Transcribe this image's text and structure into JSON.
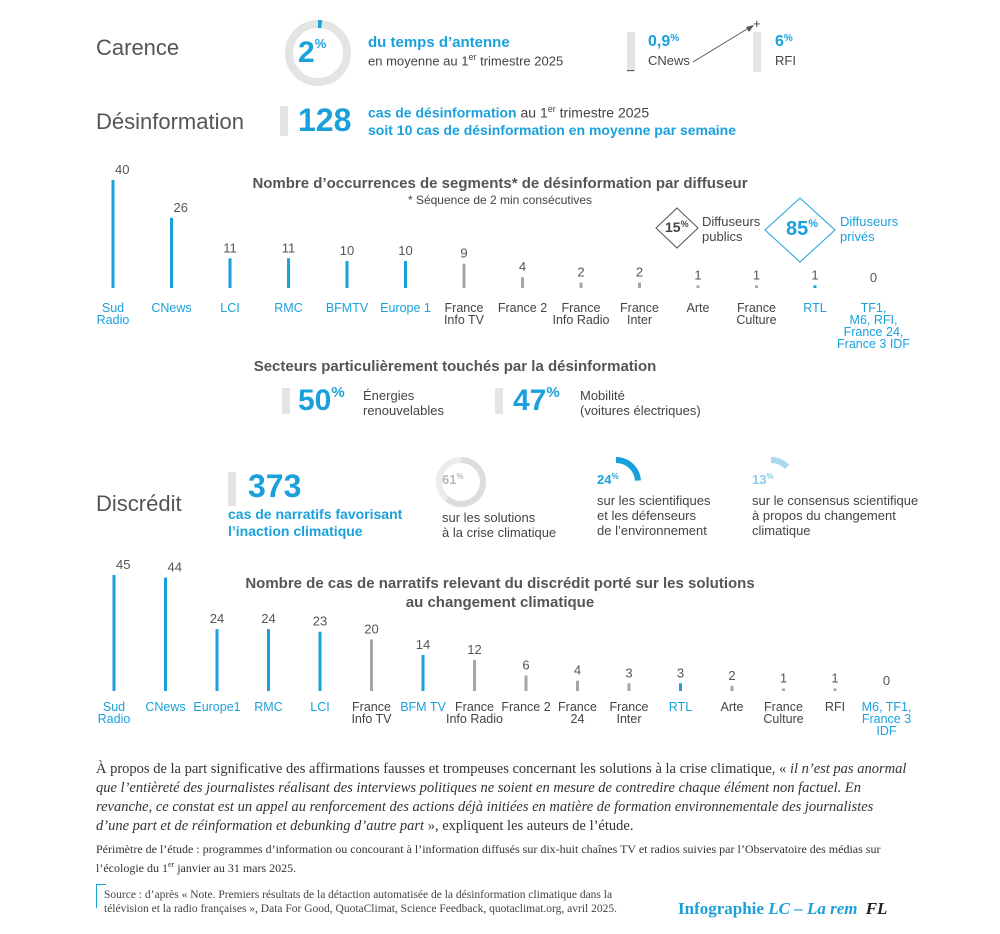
{
  "carence": {
    "title": "Carence",
    "ring_value": "2",
    "ring_unit": "%",
    "ring_fraction": 0.02,
    "line1": "du temps d’antenne",
    "line2_a": "en moyenne au 1",
    "line2_sup": "er",
    "line2_b": " trimestre 2025",
    "min_value": "0,9",
    "min_unit": "%",
    "min_label": "CNews",
    "max_value": "6",
    "max_unit": "%",
    "max_label": "RFI",
    "plus": "+",
    "minus": "–"
  },
  "desinfo": {
    "title": "Désinformation",
    "number": "128",
    "line1_blue": "cas de désinformation",
    "line1_rest_a": " au 1",
    "line1_sup": "er",
    "line1_rest_b": " trimestre 2025",
    "line2": "soit 10 cas de désinformation en moyenne par semaine"
  },
  "chart1_title": "Nombre d’occurrences de segments* de désinformation par diffuseur",
  "chart1_subtitle": "* Séquence de 2 min consécutives",
  "public_share": {
    "value": "15",
    "unit": "%",
    "label1": "Diffuseurs",
    "label2": "publics"
  },
  "private_share": {
    "value": "85",
    "unit": "%",
    "label1": "Diffuseurs",
    "label2": "privés"
  },
  "secteurs": {
    "title": "Secteurs particulièrement touchés par la désinformation",
    "s1_value": "50",
    "s1_unit": "%",
    "s1_label1": "Énergies",
    "s1_label2": "renouvelables",
    "s2_value": "47",
    "s2_unit": "%",
    "s2_label1": "Mobilité",
    "s2_label2": "(voitures électriques)"
  },
  "discredit": {
    "title": "Discrédit",
    "number": "373",
    "number_label1": "cas de narratifs favorisant",
    "number_label2": "l’inaction climatique",
    "d1_value": "61",
    "d1_unit": "%",
    "d1_fraction": 0.61,
    "d1_label1": "sur les solutions",
    "d1_label2": "à la crise climatique",
    "d2_value": "24",
    "d2_unit": "%",
    "d2_fraction": 0.24,
    "d2_label1": "sur les scientifiques",
    "d2_label2": "et les défenseurs",
    "d2_label3": "de l’environnement",
    "d3_value": "13",
    "d3_unit": "%",
    "d3_fraction": 0.13,
    "d3_label1": "sur le consensus scientifique",
    "d3_label2": "à propos du changement",
    "d3_label3": "climatique"
  },
  "chart2_title1": "Nombre de cas de narratifs relevant du discrédit porté sur les solutions",
  "chart2_title2": "au changement climatique",
  "footer": {
    "quote_a": "À propos de la part significative des affirmations fausses et trompeuses concernant les solutions à la crise climatique, « ",
    "quote_italic": "il n’est pas anormal que l’entièreté des journalistes réalisant des interviews politiques ne soient en mesure de contredire chaque élément non factuel. En revanche, ce constat est un appel au renforcement des actions déjà initiées en matière de formation environnementale des journalistes d’une part et de réinformation et debunking d’autre part",
    "quote_b": " », expliquent les auteurs de l’étude.",
    "perimetre_a": "Périmètre de l’étude : programmes d’information ou concourant à l’information diffusés sur dix-huit chaînes TV et radios suivies par l’Observatoire des médias sur l’écologie du 1",
    "perimetre_sup": "er",
    "perimetre_b": " janvier au 31 mars 2025.",
    "source1": "Source : d’après « Note. Premiers résultats de la détaction automatisée de la désinformation climatique dans la",
    "source2": "télévision et la radio françaises », Data For Good, QuotaClimat, Science Feedback, quotaclimat.org, avril 2025.",
    "credit_a": "Infographie ",
    "credit_b": "LC – La rem",
    "credit_logo": "FL"
  },
  "colors": {
    "blue": "#1aa1dc",
    "gray": "#a6a6a6",
    "light": "#e4e4e4",
    "text": "#555555"
  },
  "chart_data": [
    {
      "type": "bar",
      "title": "Nombre d’occurrences de segments* de désinformation par diffuseur",
      "subtitle": "* Séquence de 2 min consécutives",
      "categories": [
        "Sud Radio",
        "CNews",
        "LCI",
        "RMC",
        "BFMTV",
        "Europe 1",
        "France Info TV",
        "France 2",
        "France Info Radio",
        "France Inter",
        "Arte",
        "France Culture",
        "RTL",
        "TF1, M6, RFI, France 24, France 3 IDF"
      ],
      "label_lines": [
        [
          "Sud",
          "Radio"
        ],
        [
          "CNews"
        ],
        [
          "LCI"
        ],
        [
          "RMC"
        ],
        [
          "BFMTV"
        ],
        [
          "Europe 1"
        ],
        [
          "France",
          "Info TV"
        ],
        [
          "France 2"
        ],
        [
          "France",
          "Info Radio"
        ],
        [
          "France",
          "Inter"
        ],
        [
          "Arte"
        ],
        [
          "France",
          "Culture"
        ],
        [
          "RTL"
        ],
        [
          "TF1,",
          "M6, RFI,",
          "France 24,",
          "France 3 IDF"
        ]
      ],
      "values": [
        40,
        26,
        11,
        11,
        10,
        10,
        9,
        4,
        2,
        2,
        1,
        1,
        1,
        0
      ],
      "sector": [
        "private",
        "private",
        "private",
        "private",
        "private",
        "private",
        "public",
        "public",
        "public",
        "public",
        "public",
        "public",
        "private",
        "private"
      ]
    },
    {
      "type": "bar",
      "title": "Nombre de cas de narratifs relevant du discrédit porté sur les solutions au changement climatique",
      "categories": [
        "Sud Radio",
        "CNews",
        "Europe1",
        "RMC",
        "LCI",
        "France Info TV",
        "BFM TV",
        "France Info Radio",
        "France 2",
        "France 24",
        "France Inter",
        "RTL",
        "Arte",
        "France Culture",
        "RFI",
        "M6, TF1, France 3 IDF"
      ],
      "label_lines": [
        [
          "Sud",
          "Radio"
        ],
        [
          "CNews"
        ],
        [
          "Europe1"
        ],
        [
          "RMC"
        ],
        [
          "LCI"
        ],
        [
          "France",
          "Info TV"
        ],
        [
          "BFM TV"
        ],
        [
          "France",
          "Info Radio"
        ],
        [
          "France 2"
        ],
        [
          "France",
          "24"
        ],
        [
          "France",
          "Inter"
        ],
        [
          "RTL"
        ],
        [
          "Arte"
        ],
        [
          "France",
          "Culture"
        ],
        [
          "RFI"
        ],
        [
          "M6, TF1,",
          "France 3",
          "IDF"
        ]
      ],
      "values": [
        45,
        44,
        24,
        24,
        23,
        20,
        14,
        12,
        6,
        4,
        3,
        3,
        2,
        1,
        1,
        0
      ],
      "sector": [
        "private",
        "private",
        "private",
        "private",
        "private",
        "public",
        "private",
        "public",
        "public",
        "public",
        "public",
        "private",
        "public",
        "public",
        "public",
        "private"
      ]
    }
  ]
}
